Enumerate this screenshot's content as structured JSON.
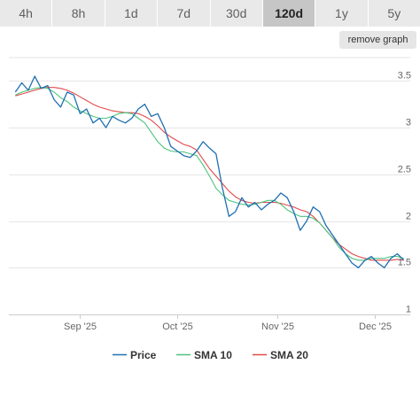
{
  "range_tabs": [
    {
      "label": "4h",
      "active": false
    },
    {
      "label": "8h",
      "active": false
    },
    {
      "label": "1d",
      "active": false
    },
    {
      "label": "7d",
      "active": false
    },
    {
      "label": "30d",
      "active": false
    },
    {
      "label": "120d",
      "active": true
    },
    {
      "label": "1y",
      "active": false
    },
    {
      "label": "5y",
      "active": false
    }
  ],
  "remove_graph_label": "remove graph",
  "chart_data": {
    "type": "line",
    "title": "",
    "xlabel": "",
    "ylabel": "",
    "x_ticks": [
      "Sep '25",
      "Oct '25",
      "Nov '25",
      "Dec '25"
    ],
    "y_ticks": [
      1,
      1.5,
      2,
      2.5,
      3,
      3.5
    ],
    "ylim": [
      1,
      3.75
    ],
    "y_axis_position": "right",
    "grid": "horizontal",
    "legend_position": "bottom",
    "x_dates": [
      "2025-08-12",
      "2025-08-14",
      "2025-08-16",
      "2025-08-18",
      "2025-08-20",
      "2025-08-22",
      "2025-08-24",
      "2025-08-26",
      "2025-08-28",
      "2025-08-30",
      "2025-09-01",
      "2025-09-03",
      "2025-09-05",
      "2025-09-07",
      "2025-09-09",
      "2025-09-11",
      "2025-09-13",
      "2025-09-15",
      "2025-09-17",
      "2025-09-19",
      "2025-09-21",
      "2025-09-23",
      "2025-09-25",
      "2025-09-27",
      "2025-09-29",
      "2025-10-01",
      "2025-10-03",
      "2025-10-05",
      "2025-10-07",
      "2025-10-09",
      "2025-10-11",
      "2025-10-13",
      "2025-10-15",
      "2025-10-17",
      "2025-10-19",
      "2025-10-21",
      "2025-10-23",
      "2025-10-25",
      "2025-10-27",
      "2025-10-29",
      "2025-10-31",
      "2025-11-02",
      "2025-11-04",
      "2025-11-06",
      "2025-11-08",
      "2025-11-10",
      "2025-11-12",
      "2025-11-14",
      "2025-11-16",
      "2025-11-18",
      "2025-11-20",
      "2025-11-22",
      "2025-11-24",
      "2025-11-26",
      "2025-11-28",
      "2025-11-30",
      "2025-12-02",
      "2025-12-04",
      "2025-12-06",
      "2025-12-08",
      "2025-12-10"
    ],
    "series": [
      {
        "name": "Price",
        "color": "#1f6fb2",
        "values": [
          3.38,
          3.48,
          3.4,
          3.55,
          3.42,
          3.45,
          3.3,
          3.22,
          3.38,
          3.35,
          3.15,
          3.2,
          3.05,
          3.1,
          3.0,
          3.12,
          3.08,
          3.05,
          3.1,
          3.2,
          3.25,
          3.12,
          3.15,
          3.0,
          2.8,
          2.75,
          2.7,
          2.68,
          2.75,
          2.85,
          2.78,
          2.72,
          2.35,
          2.05,
          2.1,
          2.25,
          2.15,
          2.2,
          2.12,
          2.18,
          2.22,
          2.3,
          2.25,
          2.1,
          1.9,
          2.0,
          2.15,
          2.1,
          1.95,
          1.85,
          1.75,
          1.65,
          1.55,
          1.5,
          1.58,
          1.62,
          1.55,
          1.5,
          1.6,
          1.65,
          1.58
        ]
      },
      {
        "name": "SMA 10",
        "color": "#4cc47e",
        "values": [
          3.35,
          3.38,
          3.4,
          3.42,
          3.43,
          3.42,
          3.38,
          3.32,
          3.28,
          3.22,
          3.18,
          3.15,
          3.12,
          3.1,
          3.1,
          3.12,
          3.15,
          3.16,
          3.15,
          3.1,
          3.05,
          2.95,
          2.85,
          2.78,
          2.75,
          2.74,
          2.74,
          2.72,
          2.7,
          2.6,
          2.48,
          2.35,
          2.28,
          2.22,
          2.2,
          2.18,
          2.17,
          2.18,
          2.2,
          2.22,
          2.22,
          2.18,
          2.12,
          2.08,
          2.05,
          2.05,
          2.03,
          1.98,
          1.9,
          1.82,
          1.72,
          1.65,
          1.6,
          1.58,
          1.58,
          1.6,
          1.6,
          1.6,
          1.62,
          1.62,
          1.6
        ]
      },
      {
        "name": "SMA 20",
        "color": "#e24a4a",
        "values": [
          3.34,
          3.36,
          3.38,
          3.4,
          3.42,
          3.43,
          3.43,
          3.42,
          3.4,
          3.37,
          3.33,
          3.29,
          3.25,
          3.22,
          3.2,
          3.18,
          3.17,
          3.16,
          3.16,
          3.15,
          3.12,
          3.08,
          3.02,
          2.95,
          2.9,
          2.86,
          2.82,
          2.8,
          2.76,
          2.66,
          2.56,
          2.48,
          2.4,
          2.32,
          2.26,
          2.22,
          2.2,
          2.19,
          2.2,
          2.2,
          2.2,
          2.19,
          2.17,
          2.15,
          2.12,
          2.1,
          2.05,
          1.98,
          1.9,
          1.82,
          1.75,
          1.7,
          1.65,
          1.62,
          1.6,
          1.58,
          1.58,
          1.58,
          1.58,
          1.59,
          1.58
        ]
      }
    ]
  }
}
